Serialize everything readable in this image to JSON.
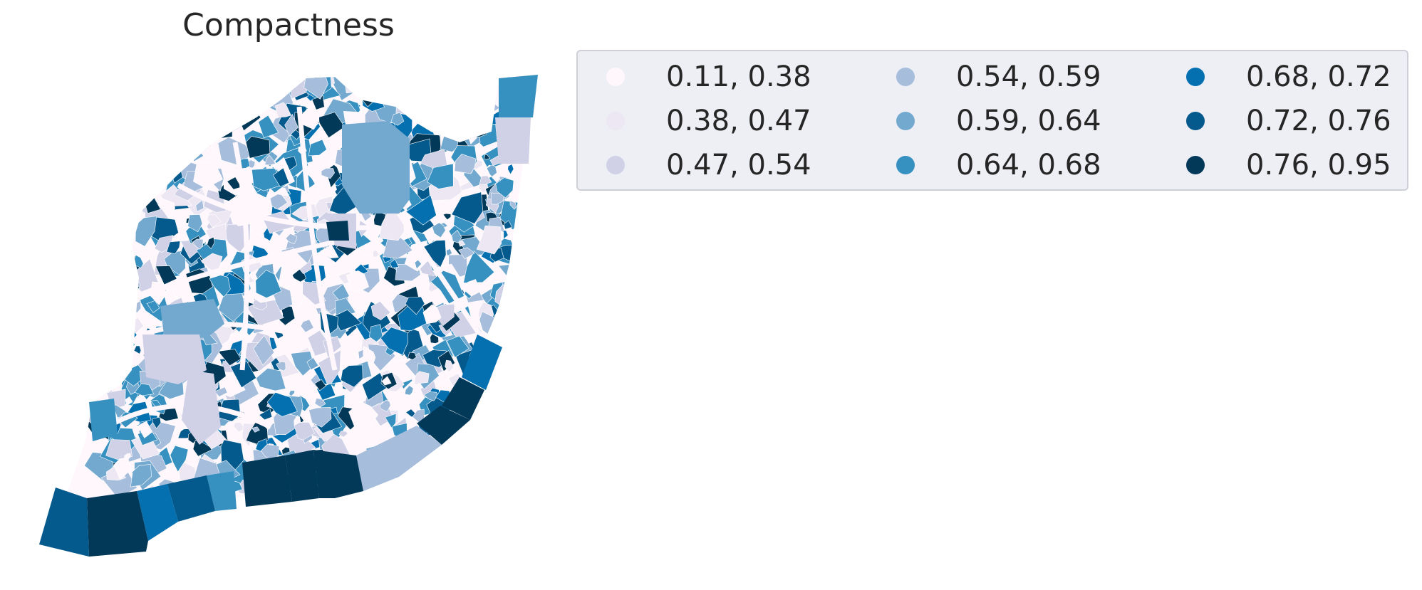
{
  "title": "Compactness",
  "legend": {
    "columns": 3,
    "items": [
      {
        "label": "0.11, 0.38",
        "color": "#fff7fb"
      },
      {
        "label": "0.38, 0.47",
        "color": "#ece7f2"
      },
      {
        "label": "0.47, 0.54",
        "color": "#d0d1e6"
      },
      {
        "label": "0.54, 0.59",
        "color": "#a6bddb"
      },
      {
        "label": "0.59, 0.64",
        "color": "#74a9cf"
      },
      {
        "label": "0.64, 0.68",
        "color": "#3690c0"
      },
      {
        "label": "0.68, 0.72",
        "color": "#0570b0"
      },
      {
        "label": "0.72, 0.76",
        "color": "#045a8d"
      },
      {
        "label": "0.76, 0.95",
        "color": "#023858"
      }
    ]
  },
  "map": {
    "type": "choropleth",
    "colormap": "PuBu",
    "classes": 9
  }
}
